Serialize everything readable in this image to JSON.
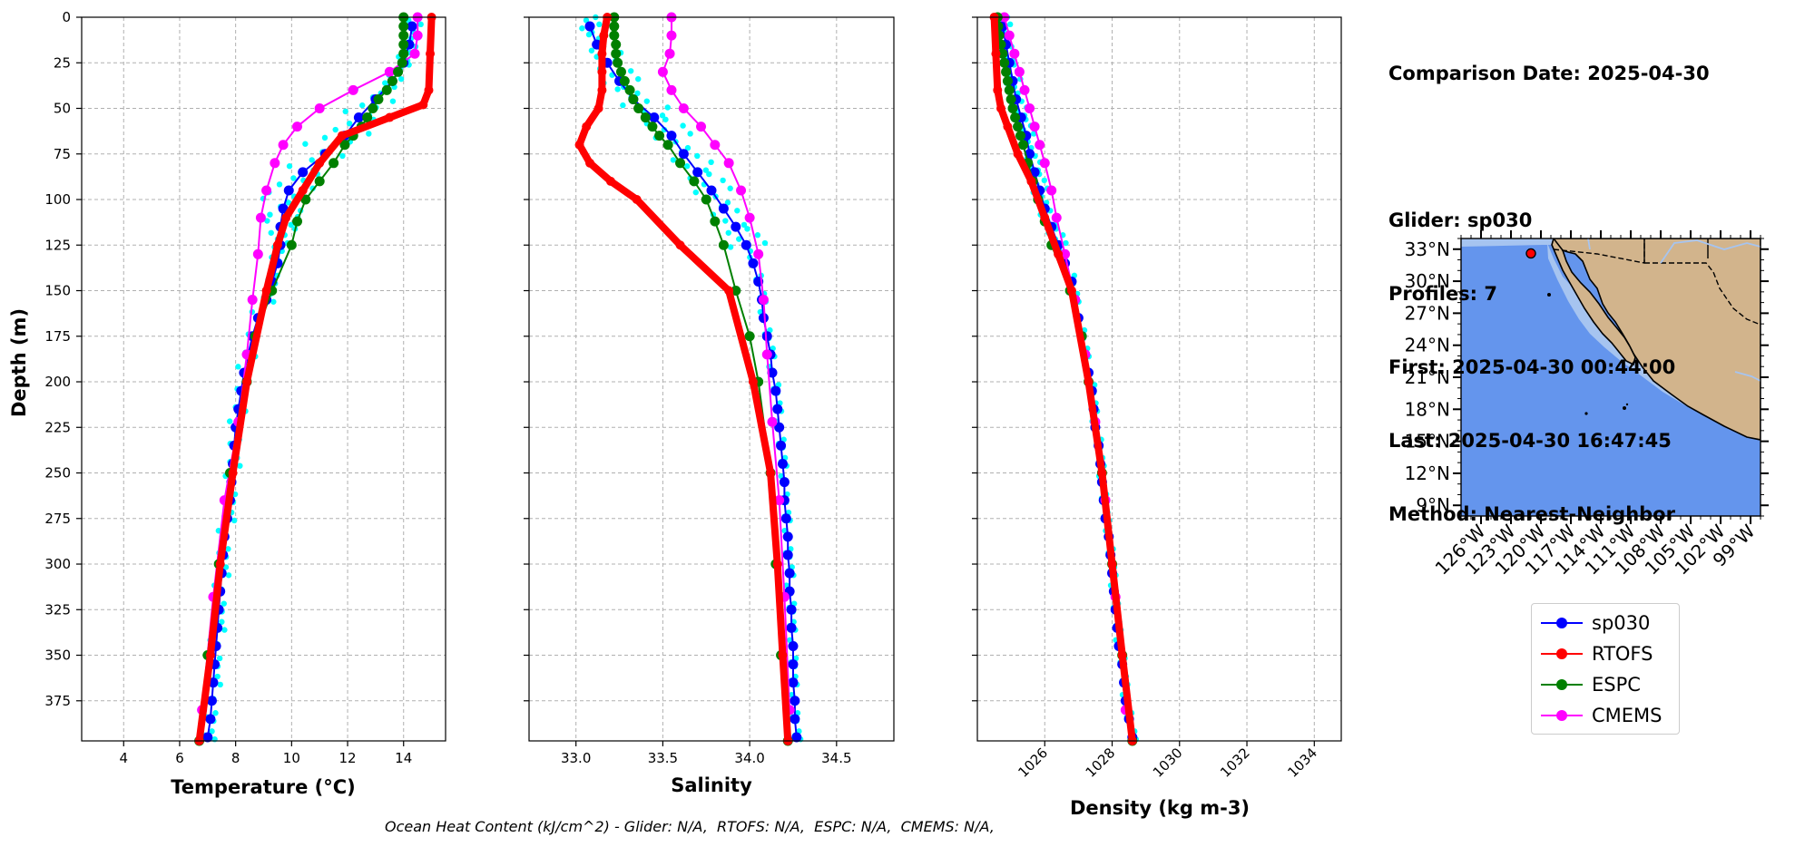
{
  "info": {
    "comparison_date": "Comparison Date: 2025-04-30",
    "glider": "Glider: sp030",
    "profiles": "Profiles: 7",
    "first": "First: 2025-04-30 00:44:00",
    "last": "Last: 2025-04-30 16:47:45",
    "method": "Method: Nearest-Neighbor"
  },
  "footer": "Ocean Heat Content (kJ/cm^2) - Glider: N/A,  RTOFS: N/A,  ESPC: N/A,  CMEMS: N/A,",
  "legend": [
    {
      "label": "sp030",
      "color": "#0000ff"
    },
    {
      "label": "RTOFS",
      "color": "#ff0000"
    },
    {
      "label": "ESPC",
      "color": "#008000"
    },
    {
      "label": "CMEMS",
      "color": "#ff00ff"
    }
  ],
  "colors": {
    "glider": "#0000ff",
    "rtofs": "#ff0000",
    "espc": "#008000",
    "cmems": "#ff00ff",
    "scatter": "#00ffff",
    "ocean": "#6495ed",
    "shelf": "#a6c4f0",
    "land": "#d2b48c"
  },
  "chart_data": [
    {
      "type": "line",
      "xlabel": "Temperature (°C)",
      "ylabel": "Depth (m)",
      "xlim": [
        2.5,
        15.5
      ],
      "ylim": [
        397,
        0
      ],
      "xticks": [
        4,
        6,
        8,
        10,
        12,
        14
      ],
      "yticks": [
        0,
        25,
        50,
        75,
        100,
        125,
        150,
        175,
        200,
        225,
        250,
        275,
        300,
        325,
        350,
        375
      ],
      "grid": true,
      "series": [
        {
          "name": "sp030",
          "y": [
            5,
            15,
            25,
            35,
            45,
            55,
            65,
            75,
            85,
            95,
            105,
            115,
            125,
            135,
            145,
            155,
            165,
            175,
            185,
            195,
            205,
            215,
            225,
            235,
            245,
            255,
            265,
            275,
            285,
            295,
            305,
            315,
            325,
            335,
            345,
            355,
            365,
            375,
            385,
            395
          ],
          "values": [
            14.3,
            14.2,
            14.0,
            13.6,
            13.0,
            12.4,
            11.9,
            11.2,
            10.4,
            9.9,
            9.7,
            9.6,
            9.6,
            9.5,
            9.3,
            9.1,
            8.8,
            8.6,
            8.45,
            8.3,
            8.2,
            8.1,
            8.0,
            7.95,
            7.9,
            7.85,
            7.8,
            7.7,
            7.6,
            7.55,
            7.5,
            7.45,
            7.4,
            7.35,
            7.3,
            7.25,
            7.2,
            7.15,
            7.1,
            7.0
          ]
        },
        {
          "name": "RTOFS",
          "y": [
            0,
            20,
            40,
            48,
            55,
            65,
            80,
            95,
            110,
            125,
            150,
            200,
            250,
            300,
            350,
            397
          ],
          "values": [
            15.0,
            14.95,
            14.9,
            14.7,
            13.5,
            11.8,
            11.0,
            10.4,
            9.8,
            9.5,
            9.1,
            8.4,
            7.9,
            7.45,
            7.1,
            6.7
          ]
        },
        {
          "name": "ESPC",
          "y": [
            0,
            5,
            10,
            15,
            20,
            25,
            30,
            35,
            40,
            45,
            50,
            55,
            60,
            65,
            70,
            80,
            90,
            100,
            112,
            125,
            150,
            175,
            200,
            250,
            300,
            350,
            397
          ],
          "values": [
            14.0,
            14.0,
            14.0,
            14.0,
            14.0,
            13.95,
            13.8,
            13.6,
            13.4,
            13.1,
            12.9,
            12.7,
            12.5,
            12.2,
            11.9,
            11.5,
            11.0,
            10.5,
            10.2,
            10.0,
            9.3,
            8.7,
            8.4,
            7.8,
            7.4,
            7.0,
            6.7
          ]
        },
        {
          "name": "CMEMS",
          "y": [
            0,
            10,
            20,
            30,
            40,
            50,
            60,
            70,
            80,
            95,
            110,
            130,
            155,
            185,
            222,
            265,
            318,
            380
          ],
          "values": [
            14.5,
            14.5,
            14.4,
            13.5,
            12.2,
            11.0,
            10.2,
            9.7,
            9.4,
            9.1,
            8.9,
            8.8,
            8.6,
            8.4,
            8.1,
            7.6,
            7.2,
            6.8
          ]
        }
      ]
    },
    {
      "type": "line",
      "xlabel": "Salinity",
      "xlim": [
        32.73,
        34.83
      ],
      "ylim": [
        397,
        0
      ],
      "xticks": [
        33.0,
        33.5,
        34.0,
        34.5
      ],
      "grid": true,
      "series": [
        {
          "name": "sp030",
          "y": [
            5,
            15,
            25,
            35,
            45,
            55,
            65,
            75,
            85,
            95,
            105,
            115,
            125,
            135,
            145,
            155,
            165,
            175,
            185,
            195,
            205,
            215,
            225,
            235,
            245,
            255,
            265,
            275,
            285,
            295,
            305,
            315,
            325,
            335,
            345,
            355,
            365,
            375,
            385,
            395
          ],
          "values": [
            33.08,
            33.12,
            33.18,
            33.25,
            33.33,
            33.45,
            33.55,
            33.62,
            33.7,
            33.78,
            33.85,
            33.92,
            33.98,
            34.02,
            34.05,
            34.07,
            34.08,
            34.1,
            34.12,
            34.13,
            34.15,
            34.16,
            34.17,
            34.18,
            34.19,
            34.2,
            34.2,
            34.21,
            34.22,
            34.22,
            34.23,
            34.23,
            34.24,
            34.24,
            34.25,
            34.25,
            34.25,
            34.26,
            34.26,
            34.27
          ]
        },
        {
          "name": "RTOFS",
          "y": [
            0,
            10,
            20,
            30,
            40,
            50,
            60,
            70,
            80,
            90,
            100,
            125,
            150,
            200,
            250,
            300,
            350,
            397
          ],
          "values": [
            33.18,
            33.16,
            33.15,
            33.15,
            33.15,
            33.13,
            33.06,
            33.02,
            33.08,
            33.2,
            33.35,
            33.6,
            33.88,
            34.02,
            34.12,
            34.16,
            34.19,
            34.22
          ]
        },
        {
          "name": "ESPC",
          "y": [
            0,
            5,
            10,
            15,
            20,
            25,
            30,
            35,
            40,
            45,
            50,
            55,
            60,
            65,
            70,
            80,
            90,
            100,
            112,
            125,
            150,
            175,
            200,
            250,
            300,
            350,
            397
          ],
          "values": [
            33.22,
            33.22,
            33.22,
            33.23,
            33.23,
            33.24,
            33.26,
            33.28,
            33.31,
            33.33,
            33.36,
            33.4,
            33.44,
            33.48,
            33.53,
            33.6,
            33.68,
            33.75,
            33.8,
            33.85,
            33.92,
            34.0,
            34.05,
            34.12,
            34.15,
            34.18,
            34.22
          ]
        },
        {
          "name": "CMEMS",
          "y": [
            0,
            10,
            20,
            30,
            40,
            50,
            60,
            70,
            80,
            95,
            110,
            130,
            155,
            185,
            222,
            265,
            318,
            380
          ],
          "values": [
            33.55,
            33.55,
            33.54,
            33.5,
            33.55,
            33.62,
            33.72,
            33.8,
            33.88,
            33.95,
            34.0,
            34.05,
            34.08,
            34.1,
            34.13,
            34.17,
            34.2,
            34.23
          ]
        }
      ]
    },
    {
      "type": "line",
      "xlabel": "Density (kg m-3)",
      "xlim": [
        1024.0,
        1034.8
      ],
      "ylim": [
        397,
        0
      ],
      "xticks": [
        1026,
        1028,
        1030,
        1032,
        1034
      ],
      "grid": true,
      "series": [
        {
          "name": "sp030",
          "y": [
            5,
            15,
            25,
            35,
            45,
            55,
            65,
            75,
            85,
            95,
            105,
            115,
            125,
            135,
            145,
            155,
            165,
            175,
            185,
            195,
            205,
            215,
            225,
            235,
            245,
            255,
            265,
            275,
            285,
            295,
            305,
            315,
            325,
            335,
            345,
            355,
            365,
            375,
            385,
            395
          ],
          "values": [
            1024.75,
            1024.85,
            1024.95,
            1025.05,
            1025.15,
            1025.3,
            1025.45,
            1025.55,
            1025.7,
            1025.85,
            1026.0,
            1026.2,
            1026.4,
            1026.6,
            1026.8,
            1026.9,
            1027.0,
            1027.1,
            1027.2,
            1027.3,
            1027.4,
            1027.45,
            1027.5,
            1027.6,
            1027.65,
            1027.7,
            1027.75,
            1027.8,
            1027.9,
            1027.95,
            1028.0,
            1028.05,
            1028.1,
            1028.15,
            1028.2,
            1028.3,
            1028.35,
            1028.4,
            1028.5,
            1028.6
          ]
        },
        {
          "name": "RTOFS",
          "y": [
            0,
            20,
            40,
            50,
            60,
            75,
            90,
            110,
            130,
            150,
            200,
            250,
            300,
            350,
            397
          ],
          "values": [
            1024.5,
            1024.55,
            1024.6,
            1024.7,
            1024.9,
            1025.2,
            1025.6,
            1026.0,
            1026.4,
            1026.8,
            1027.3,
            1027.7,
            1028.0,
            1028.3,
            1028.6
          ]
        },
        {
          "name": "ESPC",
          "y": [
            0,
            5,
            10,
            15,
            20,
            25,
            30,
            35,
            40,
            45,
            50,
            55,
            60,
            65,
            70,
            80,
            90,
            100,
            112,
            125,
            150,
            175,
            200,
            250,
            300,
            350,
            397
          ],
          "values": [
            1024.6,
            1024.62,
            1024.65,
            1024.7,
            1024.75,
            1024.8,
            1024.85,
            1024.9,
            1024.95,
            1025.0,
            1025.05,
            1025.12,
            1025.2,
            1025.28,
            1025.36,
            1025.5,
            1025.65,
            1025.8,
            1026.0,
            1026.2,
            1026.75,
            1027.1,
            1027.3,
            1027.7,
            1028.0,
            1028.3,
            1028.6
          ]
        },
        {
          "name": "CMEMS",
          "y": [
            0,
            10,
            20,
            30,
            40,
            50,
            60,
            70,
            80,
            95,
            110,
            130,
            155,
            185,
            222,
            265,
            318,
            380
          ],
          "values": [
            1024.8,
            1024.95,
            1025.1,
            1025.25,
            1025.4,
            1025.55,
            1025.7,
            1025.85,
            1026.0,
            1026.2,
            1026.35,
            1026.6,
            1026.9,
            1027.2,
            1027.5,
            1027.8,
            1028.1,
            1028.4
          ]
        }
      ]
    },
    {
      "type": "map",
      "lat_ticks": [
        "33°N",
        "30°N",
        "27°N",
        "24°N",
        "21°N",
        "18°N",
        "15°N",
        "12°N",
        "9°N"
      ],
      "lon_ticks": [
        "126°W",
        "123°W",
        "120°W",
        "117°W",
        "114°W",
        "111°W",
        "108°W",
        "105°W",
        "102°W",
        "99°W"
      ],
      "glider_position": {
        "lon": -121.0,
        "lat": 32.6
      }
    }
  ]
}
